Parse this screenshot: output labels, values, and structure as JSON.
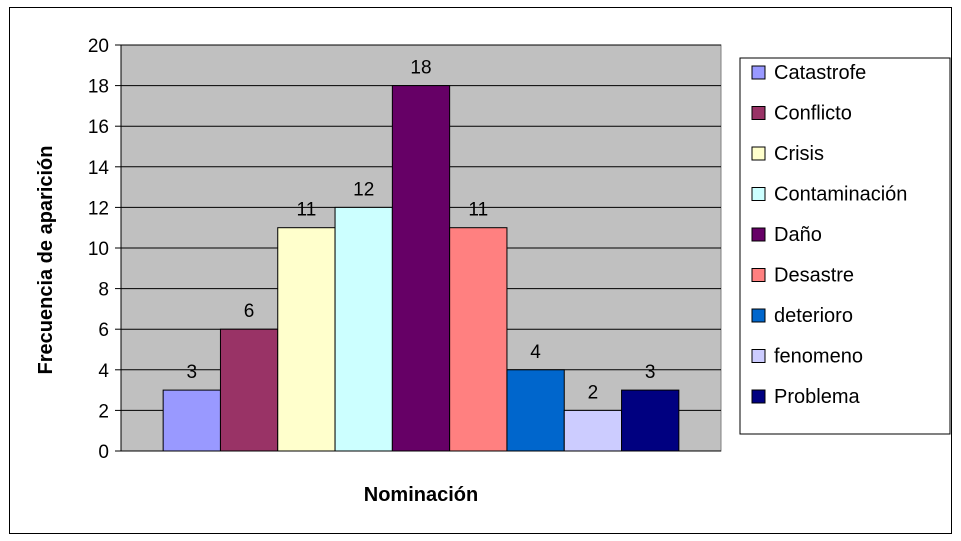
{
  "chart_data": {
    "type": "bar",
    "title": "",
    "xlabel": "Nominación",
    "ylabel": "Frecuencia de aparición",
    "ylim": [
      0,
      20
    ],
    "ytick_step": 2,
    "grid": true,
    "legend_position": "right",
    "plot_background": "#c0c0c0",
    "series": [
      {
        "name": "Catastrofe",
        "value": 3,
        "label": "3",
        "color": "#9999ff"
      },
      {
        "name": "Conflicto",
        "value": 6,
        "label": "6",
        "color": "#993366"
      },
      {
        "name": "Crisis",
        "value": 11,
        "label": "11",
        "color": "#ffffcc"
      },
      {
        "name": "Contaminación",
        "value": 12,
        "label": "12",
        "color": "#ccffff"
      },
      {
        "name": "Daño",
        "value": 18,
        "label": "18",
        "color": "#660066"
      },
      {
        "name": "Desastre",
        "value": 11,
        "label": "11",
        "color": "#ff8080"
      },
      {
        "name": "deterioro",
        "value": 4,
        "label": "4",
        "color": "#0066cc"
      },
      {
        "name": "fenomeno",
        "value": 2,
        "label": "2",
        "color": "#ccccff"
      },
      {
        "name": "Problema",
        "value": 3,
        "label": "3",
        "color": "#000080"
      }
    ]
  }
}
